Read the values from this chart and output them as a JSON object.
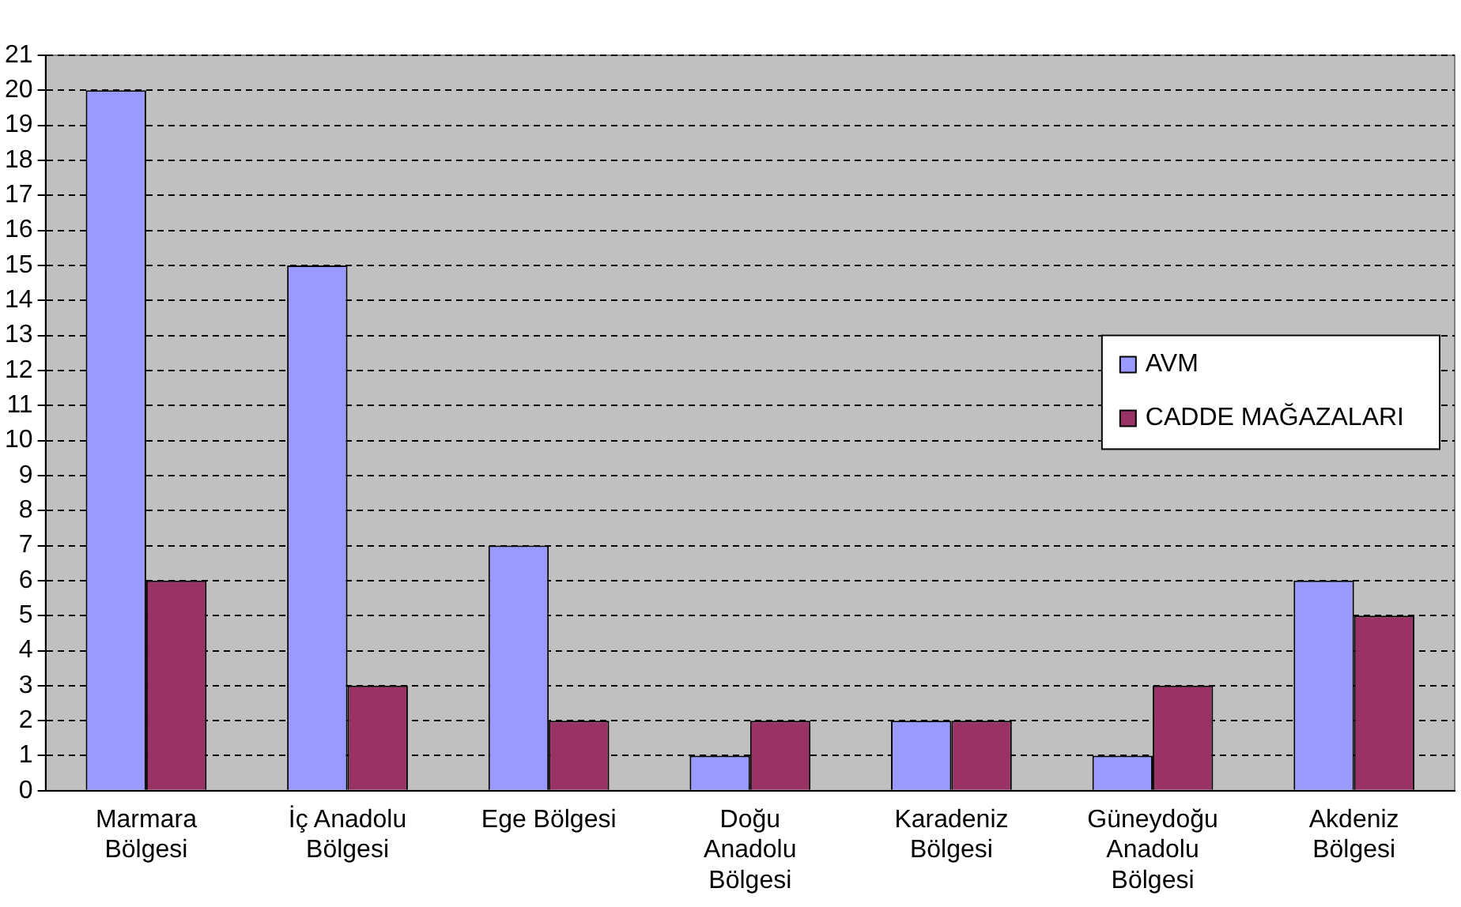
{
  "chart_data": {
    "type": "bar",
    "categories": [
      "Marmara Bölgesi",
      "İç Anadolu Bölgesi",
      "Ege Bölgesi",
      "Doğu Anadolu Bölgesi",
      "Karadeniz Bölgesi",
      "Güneydoğu Anadolu Bölgesi",
      "Akdeniz Bölgesi"
    ],
    "series": [
      {
        "name": "AVM",
        "color": "#9999ff",
        "values": [
          20,
          15,
          7,
          1,
          2,
          1,
          6
        ]
      },
      {
        "name": "CADDE MAĞAZALARI",
        "color": "#993366",
        "values": [
          6,
          3,
          2,
          2,
          2,
          3,
          5
        ]
      }
    ],
    "ylim": [
      0,
      21
    ],
    "yticks": [
      0,
      1,
      2,
      3,
      4,
      5,
      6,
      7,
      8,
      9,
      10,
      11,
      12,
      13,
      14,
      15,
      16,
      17,
      18,
      19,
      20,
      21
    ],
    "grid": "y",
    "legend": "right"
  }
}
